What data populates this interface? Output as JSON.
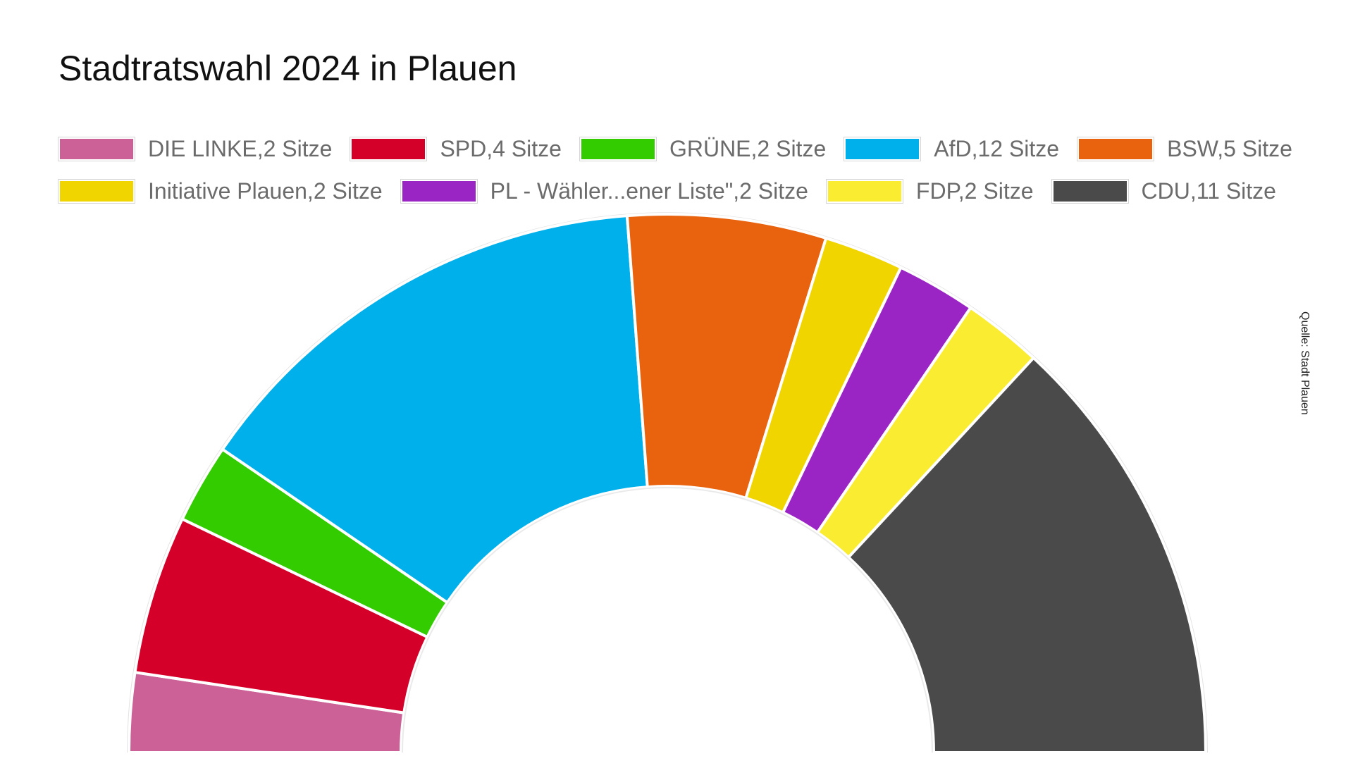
{
  "title": "Stadtratswahl 2024 in Plauen",
  "source": "Quelle: Stadt Plauen",
  "chart_data": {
    "type": "pie",
    "subtype": "half-donut (parliament seats)",
    "title": "Stadtratswahl 2024 in Plauen",
    "unit": "Sitze",
    "legend_position": "top",
    "series": [
      {
        "name": "DIE LINKE",
        "seats": 2,
        "color": "#cb6196",
        "label": "DIE LINKE,2 Sitze"
      },
      {
        "name": "SPD",
        "seats": 4,
        "color": "#d4002a",
        "label": "SPD,4 Sitze"
      },
      {
        "name": "GRÜNE",
        "seats": 2,
        "color": "#33cc00",
        "label": "GRÜNE,2 Sitze"
      },
      {
        "name": "AfD",
        "seats": 12,
        "color": "#00b0ea",
        "label": "AfD,12 Sitze"
      },
      {
        "name": "BSW",
        "seats": 5,
        "color": "#e9620d",
        "label": "BSW,5 Sitze"
      },
      {
        "name": "Initiative Plauen",
        "seats": 2,
        "color": "#f0d500",
        "label": "Initiative Plauen,2 Sitze"
      },
      {
        "name": "PL - Wähler...ener Liste\"",
        "seats": 2,
        "color": "#9a24c4",
        "label": "PL - Wähler...ener Liste\",2 Sitze"
      },
      {
        "name": "FDP",
        "seats": 2,
        "color": "#f9ec31",
        "label": "FDP,2 Sitze"
      },
      {
        "name": "CDU",
        "seats": 11,
        "color": "#4a4a4a",
        "label": "CDU,11 Sitze"
      }
    ],
    "legend_rows": [
      [
        0,
        1,
        2,
        3,
        4
      ],
      [
        5,
        6,
        7,
        8
      ]
    ]
  }
}
